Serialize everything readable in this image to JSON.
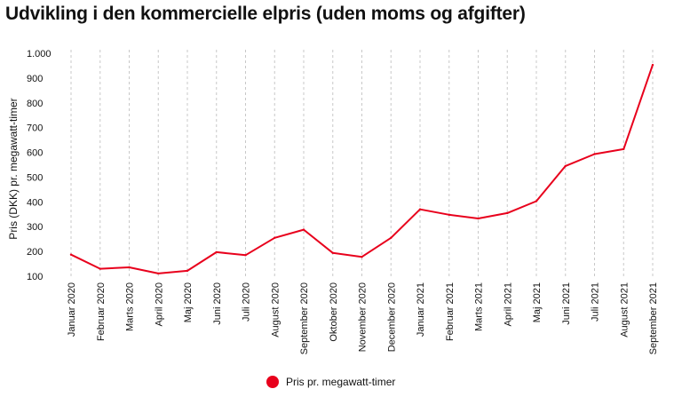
{
  "chart_data": {
    "type": "line",
    "title": "Udvikling i den kommercielle elpris (uden moms og afgifter)",
    "xlabel": "",
    "ylabel": "Pris (DKK) pr. megawatt-timer",
    "ylim": [
      100,
      1000
    ],
    "yticks": [
      "100",
      "200",
      "300",
      "400",
      "500",
      "600",
      "700",
      "800",
      "900",
      "1.000"
    ],
    "grid": "vertical dashed",
    "legend_position": "bottom-center",
    "color": "#e8001c",
    "categories": [
      "Januar 2020",
      "Februar 2020",
      "Marts 2020",
      "April 2020",
      "Maj 2020",
      "Juni 2020",
      "Juli 2020",
      "August 2020",
      "September 2020",
      "Oktober 2020",
      "November 2020",
      "December 2020",
      "Januar 2021",
      "Februar 2021",
      "Marts 2021",
      "April 2021",
      "Maj 2021",
      "Juni 2021",
      "Juli 2021",
      "August 2021",
      "September 2021"
    ],
    "series": [
      {
        "name": "Pris pr. megawatt-timer",
        "values": [
          187,
          130,
          136,
          111,
          122,
          197,
          185,
          255,
          288,
          194,
          178,
          255,
          370,
          348,
          333,
          355,
          403,
          545,
          593,
          613,
          953
        ]
      }
    ]
  }
}
